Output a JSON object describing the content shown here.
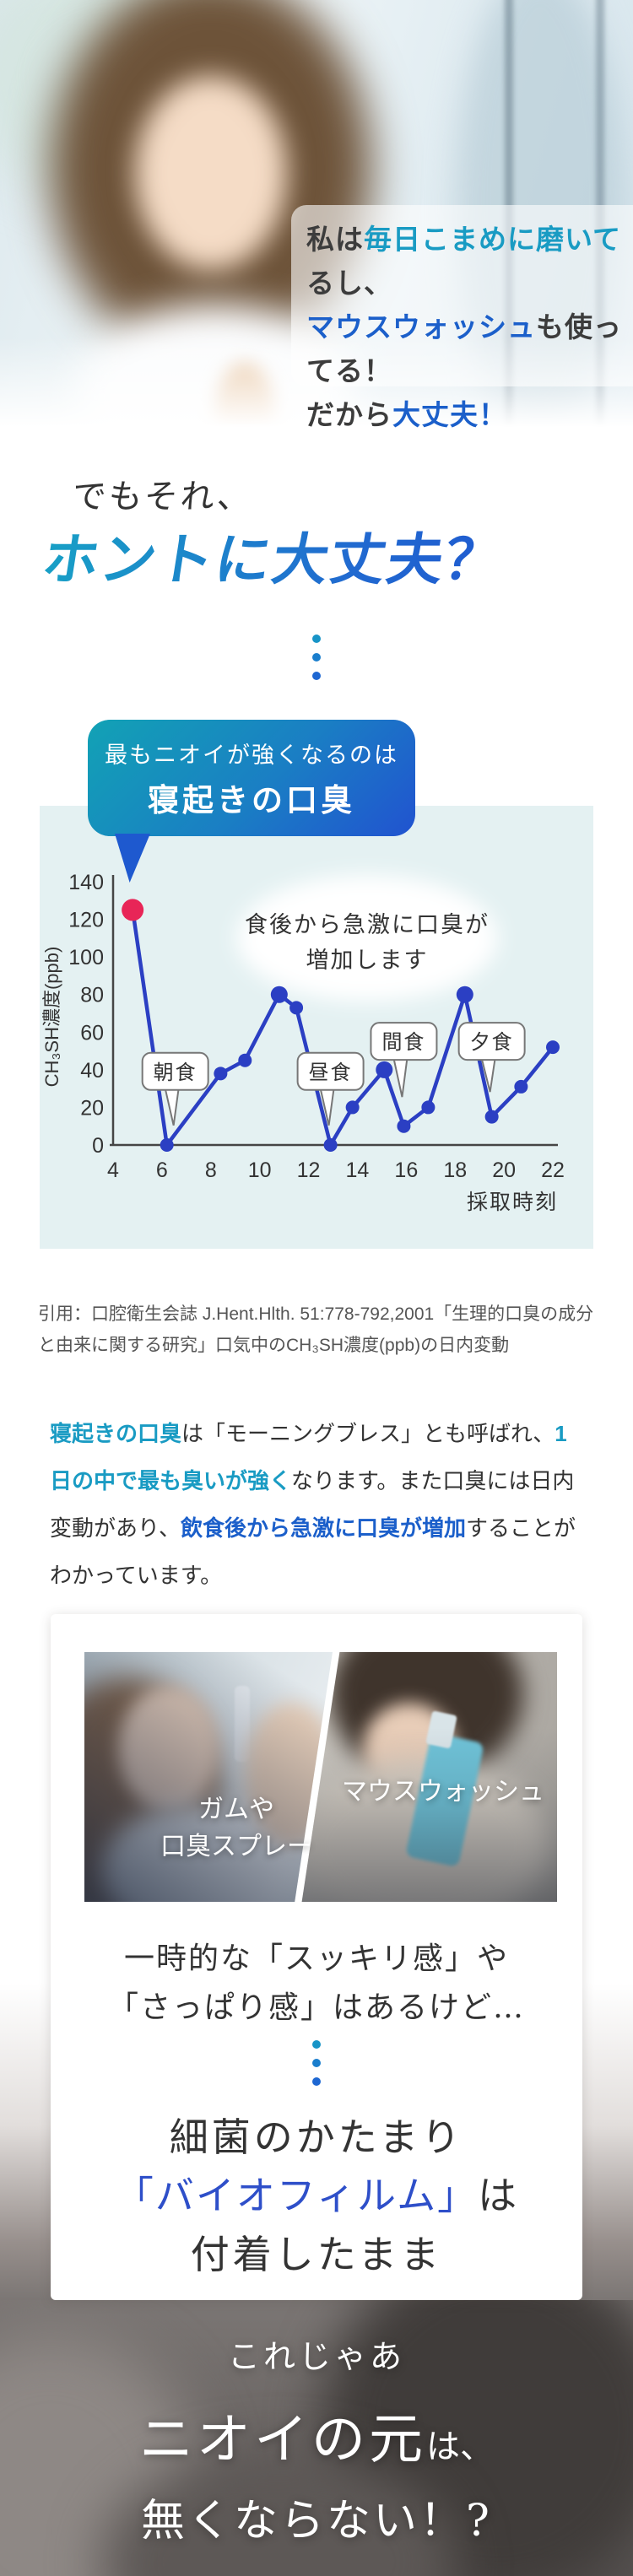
{
  "hero": {
    "speech_lines": [
      [
        {
          "t": "私は"
        },
        {
          "t": "毎日こまめに磨いて",
          "s": "teal"
        },
        {
          "t": "るし、"
        }
      ],
      [
        {
          "t": "マウスウォッシュ",
          "s": "blue"
        },
        {
          "t": "も使ってる！"
        }
      ],
      [
        {
          "t": "だから"
        },
        {
          "t": "大丈夫！",
          "s": "blue"
        }
      ]
    ]
  },
  "intro": {
    "lead": "でもそれ、",
    "headline": "ホントに大丈夫？"
  },
  "chart_section": {
    "bubble_line1": "最もニオイが強くなるのは",
    "bubble_line2": "寝起きの口臭",
    "annotation_line1": "食後から急激に口臭が",
    "annotation_line2": "増加します"
  },
  "chart_data": {
    "type": "line",
    "title": "",
    "xlabel": "採取時刻",
    "ylabel": "CH₃SH濃度(ppb)",
    "xlim": [
      4,
      22
    ],
    "ylim": [
      0,
      140
    ],
    "xticks": [
      4,
      6,
      8,
      10,
      12,
      14,
      16,
      18,
      20,
      22
    ],
    "yticks": [
      0,
      20,
      40,
      60,
      80,
      100,
      120,
      140
    ],
    "grid": false,
    "legend": "none",
    "points": [
      {
        "t": 4.8,
        "v": 125,
        "highlight": true
      },
      {
        "t": 6.2,
        "v": 0
      },
      {
        "t": 8.4,
        "v": 38
      },
      {
        "t": 9.4,
        "v": 45
      },
      {
        "t": 10.8,
        "v": 80,
        "big": true
      },
      {
        "t": 11.5,
        "v": 73
      },
      {
        "t": 12.9,
        "v": 0
      },
      {
        "t": 13.8,
        "v": 20
      },
      {
        "t": 15.1,
        "v": 40,
        "big": true
      },
      {
        "t": 15.9,
        "v": 10
      },
      {
        "t": 16.9,
        "v": 20
      },
      {
        "t": 18.4,
        "v": 80,
        "big": true
      },
      {
        "t": 19.5,
        "v": 15
      },
      {
        "t": 20.7,
        "v": 31
      },
      {
        "t": 22.0,
        "v": 52
      }
    ],
    "meal_annotations": [
      {
        "label": "朝食",
        "t": 6.2,
        "dx": 10,
        "box_v": 49,
        "tail": 42
      },
      {
        "label": "昼食",
        "t": 12.9,
        "dx": 0,
        "box_v": 49,
        "tail": 42
      },
      {
        "label": "間食",
        "t": 15.9,
        "dx": 0,
        "box_v": 65,
        "tail": 44
      },
      {
        "label": "夕食",
        "t": 19.5,
        "dx": 0,
        "box_v": 65,
        "tail": 38
      }
    ],
    "line_color": "#2b3fc3",
    "marker_color": "#2b3fc3",
    "highlight_color": "#e82557"
  },
  "citation": "引用：口腔衛生会誌 J.Hent.Hlth. 51:778-792,2001「生理的口臭の成分と由来に関する研究」口気中のCH₃SH濃度(ppb)の日内変動",
  "paragraph_segments": [
    {
      "t": "寝起きの口臭",
      "s": "teal"
    },
    {
      "t": "は「モーニングブレス」とも呼ばれ、"
    },
    {
      "t": "1日の中で最も臭いが強く",
      "s": "teal"
    },
    {
      "t": "なります。また口臭には日内変動があり、"
    },
    {
      "t": "飲食後から急激に口臭が増加",
      "s": "blue"
    },
    {
      "t": "することがわかっています。"
    }
  ],
  "card": {
    "left_label_line1": "ガムや",
    "left_label_line2": "口臭スプレー",
    "right_label": "マウスウォッシュ",
    "line1": "一時的な「スッキリ感」や",
    "line2": "「さっぱり感」はあるけど…",
    "line3": "細菌のかたまり",
    "line4": [
      {
        "t": "「バイオフィルム」",
        "s": "navy"
      },
      {
        "t": "は"
      }
    ],
    "line5": "付着したまま"
  },
  "footer": {
    "line1": "これじゃあ",
    "line2": [
      {
        "t": "ニオイの元",
        "s": "xl"
      },
      {
        "t": "は、",
        "s": "md"
      }
    ],
    "line3": "無くならない！?"
  },
  "colors": {
    "accent_teal": "#199bc3",
    "accent_blue": "#1b5fca",
    "biofilm_blue": "#2e4fc9",
    "panel_bg": "#e4f1f2",
    "chart_line": "#2b3fc3",
    "chart_highlight": "#e82557",
    "dot_colors": [
      "#1794c7",
      "#1a7ecd",
      "#1e67d2"
    ]
  }
}
